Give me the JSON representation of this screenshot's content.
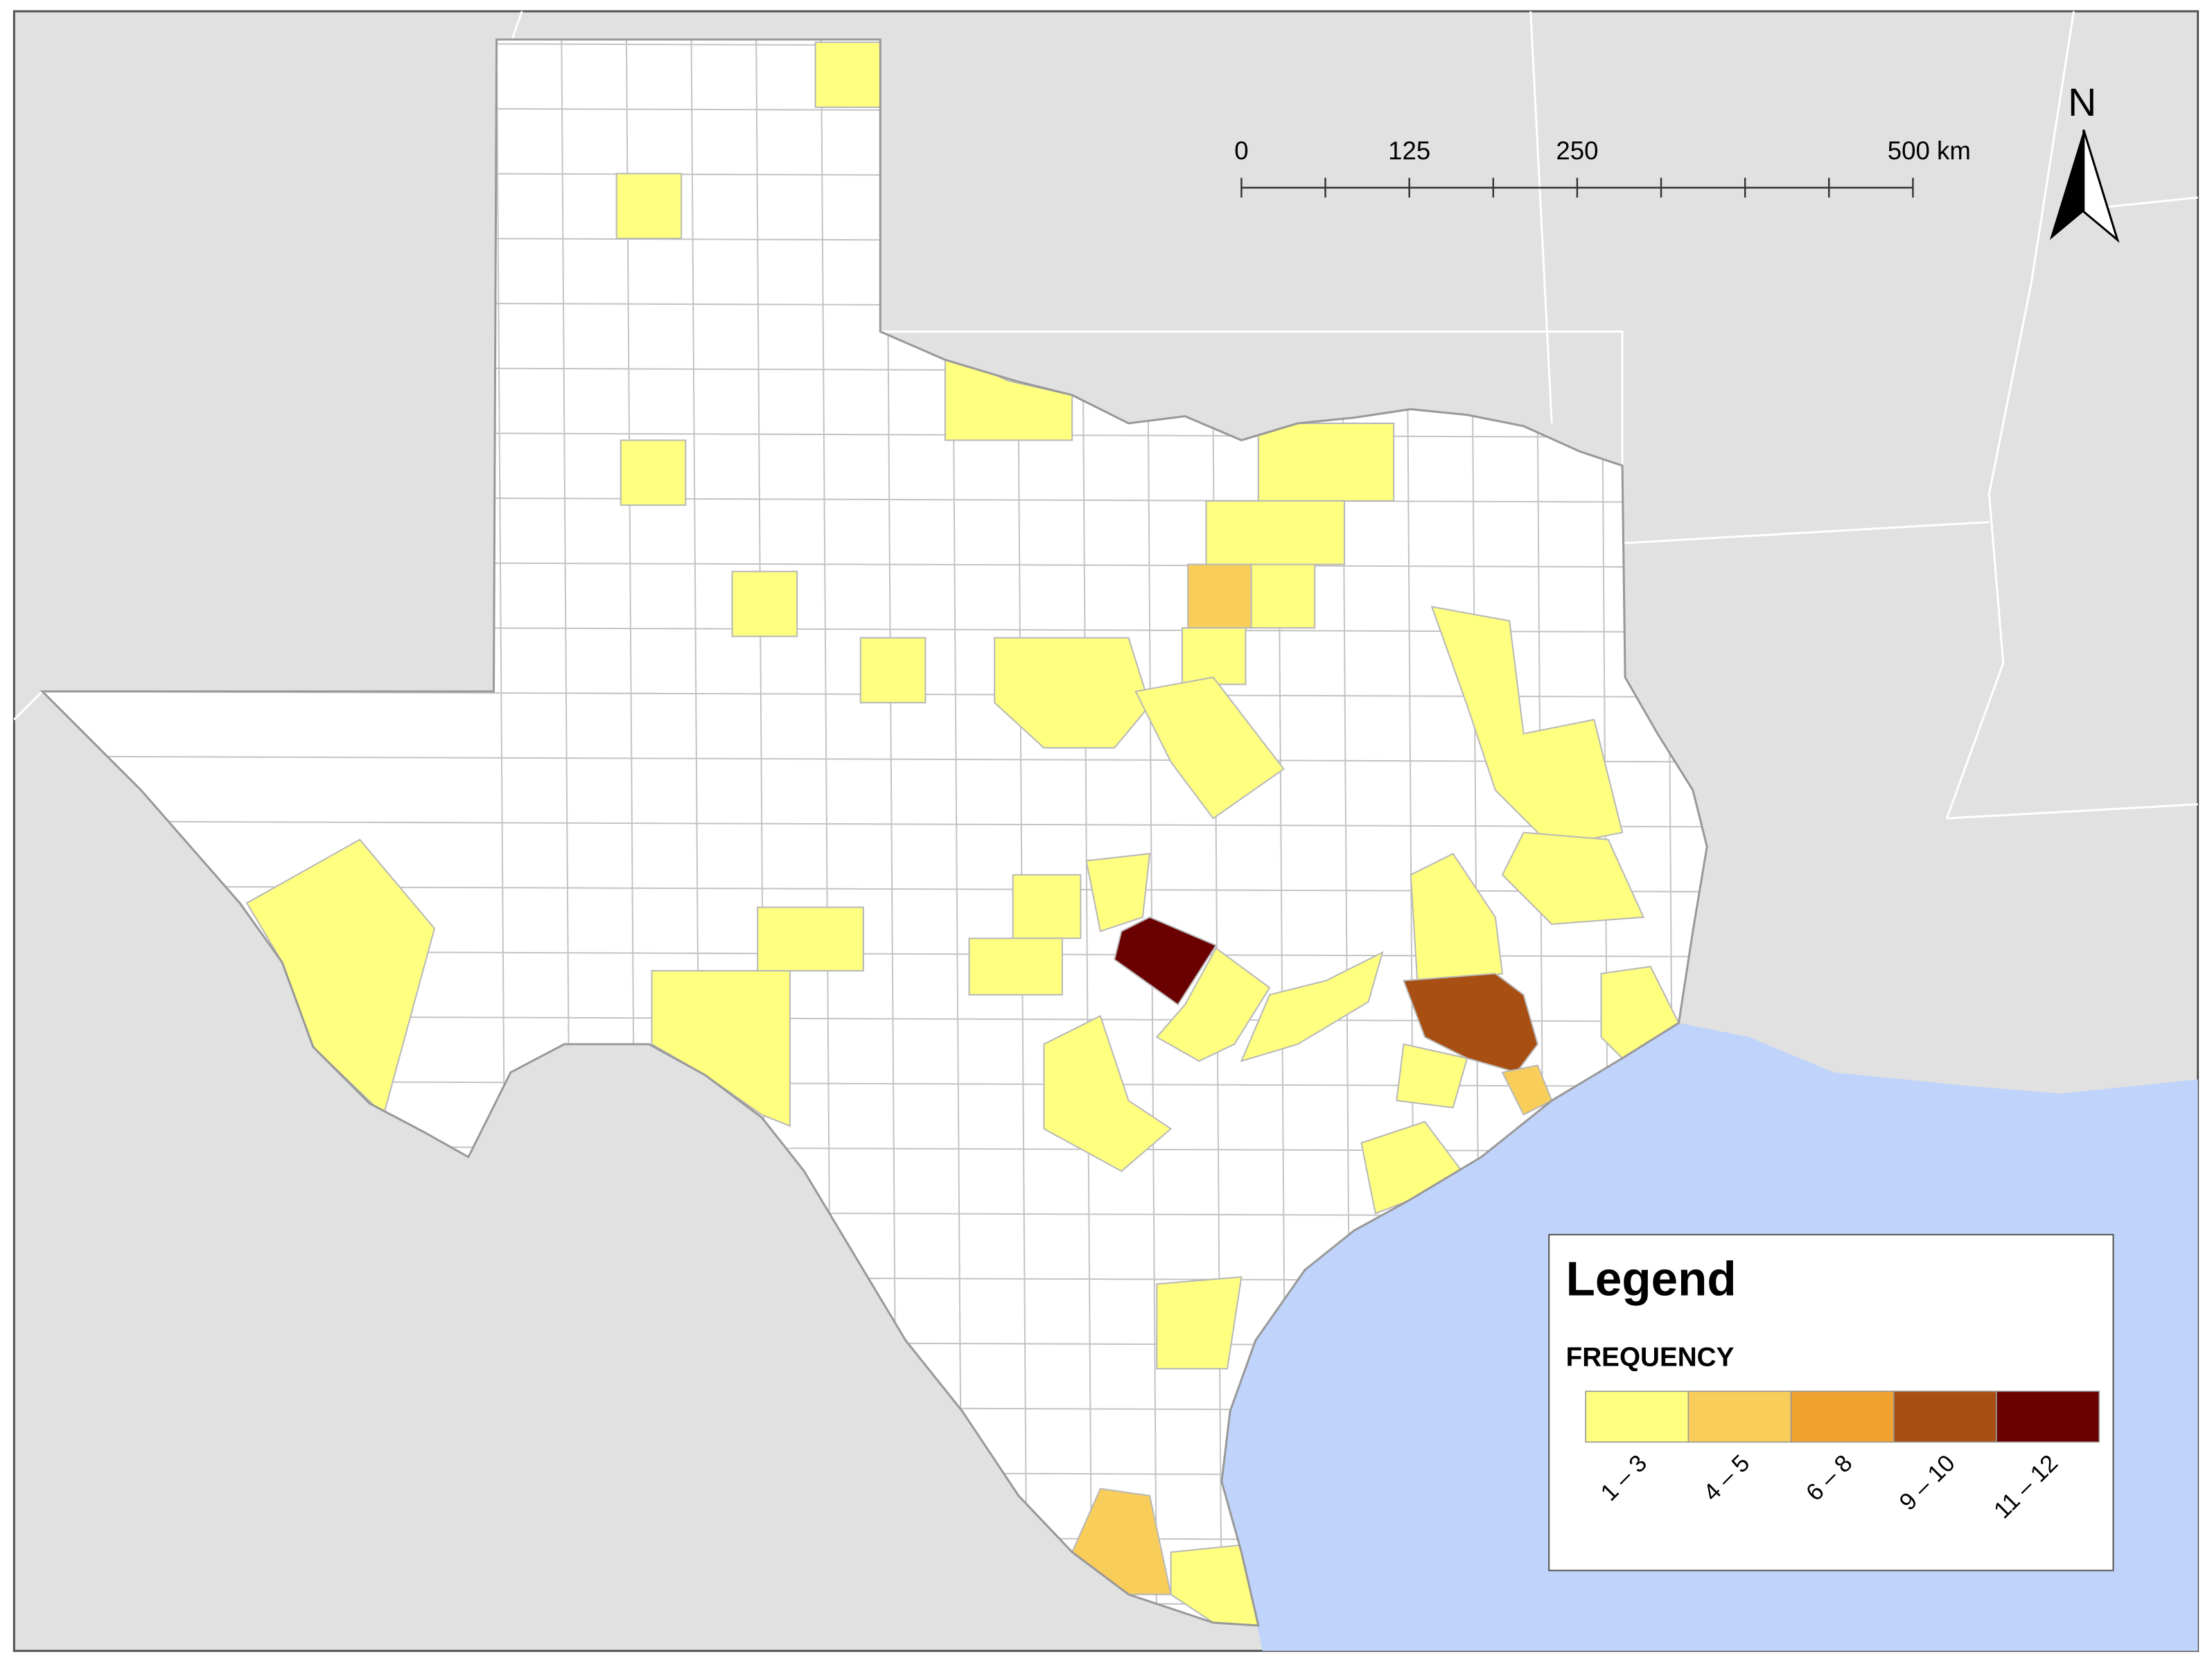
{
  "map": {
    "north_arrow": "N",
    "scale_bar": {
      "labels": [
        "0",
        "125",
        "250",
        "500 km"
      ]
    },
    "legend": {
      "title": "Legend",
      "field": "FREQUENCY",
      "classes": [
        {
          "label": "1 – 3",
          "color": "#ffff80"
        },
        {
          "label": "4 – 5",
          "color": "#f8cd5a"
        },
        {
          "label": "6 – 8",
          "color": "#f0a22e"
        },
        {
          "label": "9 – 10",
          "color": "#a84f13"
        },
        {
          "label": "11 – 12",
          "color": "#6b0000"
        }
      ]
    }
  }
}
